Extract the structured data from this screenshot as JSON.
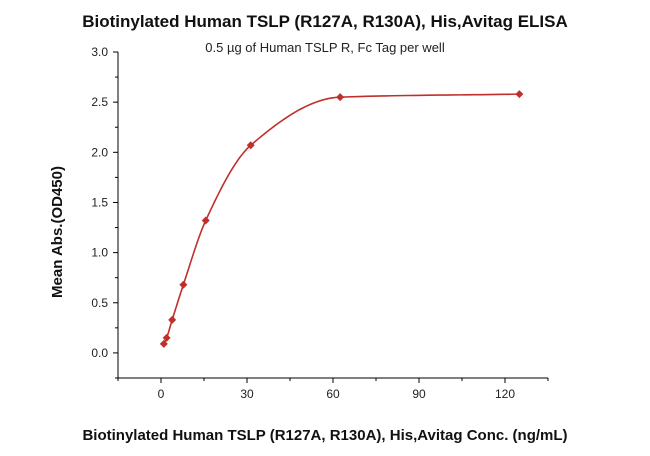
{
  "chart_data": {
    "type": "scatter",
    "title": "Biotinylated Human TSLP (R127A, R130A), His,Avitag ELISA",
    "subtitle": "0.5 µg of Human TSLP R, Fc Tag per well",
    "xlabel": "Biotinylated Human TSLP (R127A, R130A), His,Avitag Conc. (ng/mL)",
    "ylabel": "Mean Abs.(OD450)",
    "xlim": [
      -15,
      135
    ],
    "ylim": [
      -0.25,
      3.0
    ],
    "xticks": [
      "0",
      "30",
      "60",
      "90",
      "120"
    ],
    "yticks": [
      "0.0",
      "0.5",
      "1.0",
      "1.5",
      "2.0",
      "2.5",
      "3.0"
    ],
    "grid": false,
    "series": [
      {
        "points": [
          {
            "x": 0.98,
            "y": 0.09
          },
          {
            "x": 1.95,
            "y": 0.15
          },
          {
            "x": 3.9,
            "y": 0.33
          },
          {
            "x": 7.8,
            "y": 0.68
          },
          {
            "x": 15.6,
            "y": 1.32
          },
          {
            "x": 31.3,
            "y": 2.07
          },
          {
            "x": 62.5,
            "y": 2.55
          },
          {
            "x": 125,
            "y": 2.58
          }
        ],
        "color": "#c0302a",
        "marker": "diamond",
        "fit_curve": true
      }
    ]
  }
}
